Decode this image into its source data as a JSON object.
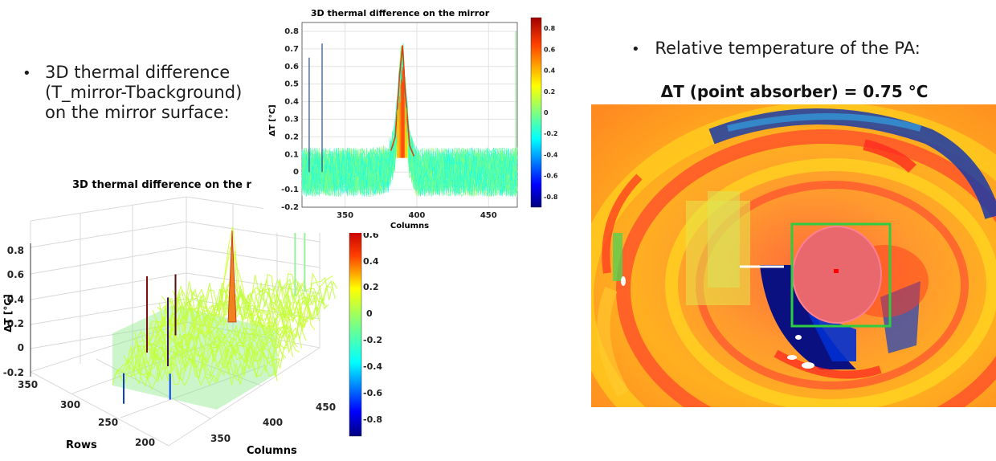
{
  "left_bullet": {
    "lines": [
      "3D thermal difference",
      "(T_mirror-Tbackground)",
      "on the mirror surface:"
    ]
  },
  "right_bullet": {
    "text": "Relative temperature of the PA:"
  },
  "chart_data": [
    {
      "type": "line",
      "title": "3D thermal difference on the mirror",
      "xlabel": "Columns",
      "ylabel": "ΔT [°C]",
      "xlim": [
        320,
        470
      ],
      "ylim": [
        -0.2,
        0.85
      ],
      "xticks": [
        "350",
        "400",
        "450"
      ],
      "yticks": [
        "0.8",
        "0.7",
        "0.6",
        "0.5",
        "0.4",
        "0.3",
        "0.2",
        "0.1",
        "0",
        "-0.1",
        "-0.2"
      ],
      "series": [
        {
          "x": [
            320,
            330,
            340,
            350,
            360,
            370,
            380,
            385,
            388,
            390,
            392,
            395,
            400,
            410,
            420,
            430,
            440,
            450,
            460,
            470
          ],
          "values": [
            0.05,
            0.05,
            0.05,
            0.05,
            0.05,
            0.05,
            0.07,
            0.2,
            0.55,
            0.72,
            0.45,
            0.15,
            0.05,
            0.05,
            0.05,
            0.05,
            0.05,
            0.05,
            0.05,
            0.05
          ]
        }
      ],
      "spikes": [
        {
          "x": 325,
          "value": 0.65
        },
        {
          "x": 334,
          "value": 0.73
        },
        {
          "x": 469,
          "value": 0.8
        }
      ],
      "colorbar": {
        "ticks": [
          "0.8",
          "0.6",
          "0.4",
          "0.2",
          "0",
          "-0.2",
          "-0.4",
          "-0.6",
          "-0.8"
        ],
        "range": [
          -0.9,
          0.9
        ]
      },
      "grid": true
    },
    {
      "type": "surface",
      "title": "3D thermal difference on the r",
      "xlabel": "Columns",
      "ylabel": "Rows",
      "zlabel": "ΔT [°C]",
      "xticks": [
        "350",
        "400",
        "450"
      ],
      "yticks": [
        "350",
        "300",
        "250",
        "200"
      ],
      "zticks": [
        "0.8",
        "0.6",
        "0.4",
        "0.2",
        "0",
        "-0.2"
      ],
      "zlim": [
        -0.2,
        0.85
      ],
      "peak_value": 0.65,
      "colorbar": {
        "ticks": [
          "0.6",
          "0.4",
          "0.2",
          "0",
          "-0.2",
          "-0.4",
          "-0.6",
          "-0.8"
        ],
        "range": [
          -0.9,
          0.65
        ]
      },
      "grid": true
    }
  ],
  "thermal_image": {
    "title": "ΔT (point absorber) = 0.75 °C"
  },
  "colors": {
    "green_box": "#2ecc40",
    "marker": "#ff0000"
  }
}
